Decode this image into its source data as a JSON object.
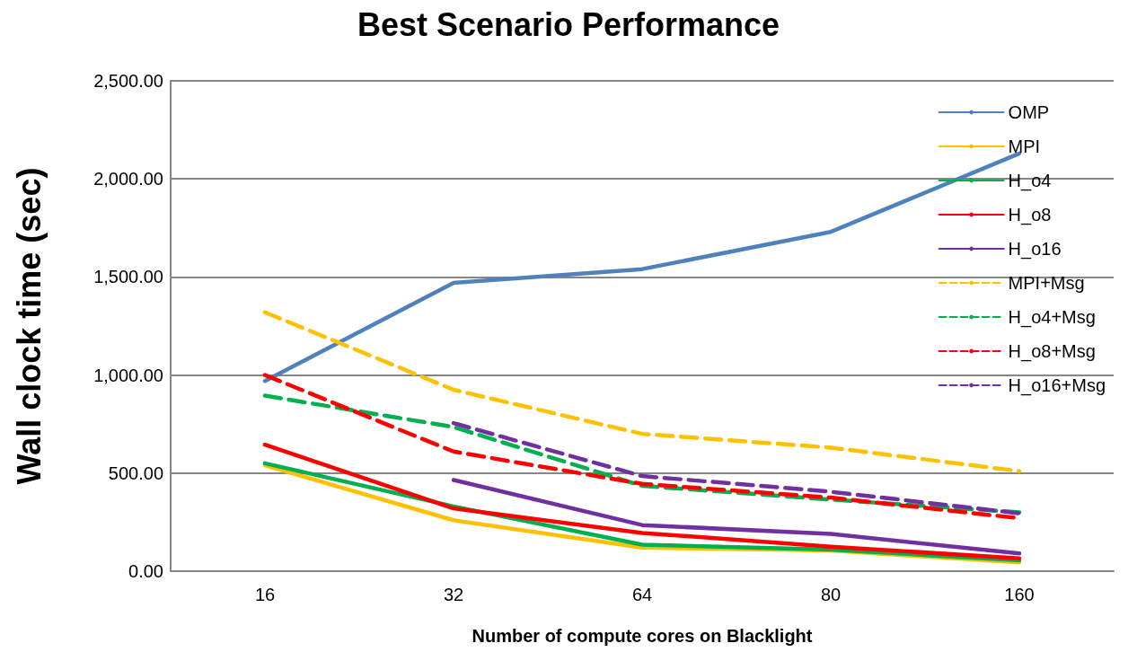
{
  "chart_data": {
    "type": "line",
    "title": "Best Scenario Performance",
    "xlabel": "Number of compute cores on Blacklight",
    "ylabel": "Wall clock time (sec)",
    "categories": [
      "16",
      "32",
      "64",
      "80",
      "160"
    ],
    "ylim": [
      0,
      2500
    ],
    "yticks": [
      {
        "value": 0,
        "label": "0.00"
      },
      {
        "value": 500,
        "label": "500.00"
      },
      {
        "value": 1000,
        "label": "1,000.00"
      },
      {
        "value": 1500,
        "label": "1,500.00"
      },
      {
        "value": 2000,
        "label": "2,000.00"
      },
      {
        "value": 2500,
        "label": "2,500.00"
      }
    ],
    "grid": "y",
    "legend": "top right",
    "marker": "none",
    "series": [
      {
        "name": "OMP",
        "color": "#4f81bd",
        "line_style": "solid",
        "values": [
          970,
          1470,
          1540,
          1730,
          2130
        ]
      },
      {
        "name": "MPI",
        "color": "#ffc000",
        "line_style": "solid",
        "values": [
          540,
          260,
          120,
          105,
          45
        ]
      },
      {
        "name": "H_o4",
        "color": "#00b050",
        "line_style": "solid",
        "values": [
          550,
          330,
          135,
          110,
          55
        ]
      },
      {
        "name": "H_o8",
        "color": "#ff0000",
        "line_style": "solid",
        "values": [
          645,
          320,
          195,
          125,
          65
        ]
      },
      {
        "name": "H_o16",
        "color": "#7030a0",
        "line_style": "solid",
        "values": [
          null,
          465,
          235,
          190,
          90
        ]
      },
      {
        "name": "MPI+Msg",
        "color": "#ffc000",
        "line_style": "dashed",
        "values": [
          1320,
          925,
          700,
          630,
          510
        ]
      },
      {
        "name": "H_o4+Msg",
        "color": "#00b050",
        "line_style": "dashed",
        "values": [
          895,
          735,
          435,
          365,
          300
        ]
      },
      {
        "name": "H_o8+Msg",
        "color": "#ff0000",
        "line_style": "dashed",
        "values": [
          1000,
          610,
          445,
          375,
          270
        ]
      },
      {
        "name": "H_o16+Msg",
        "color": "#7030a0",
        "line_style": "dashed",
        "values": [
          null,
          755,
          485,
          405,
          295
        ]
      }
    ]
  }
}
